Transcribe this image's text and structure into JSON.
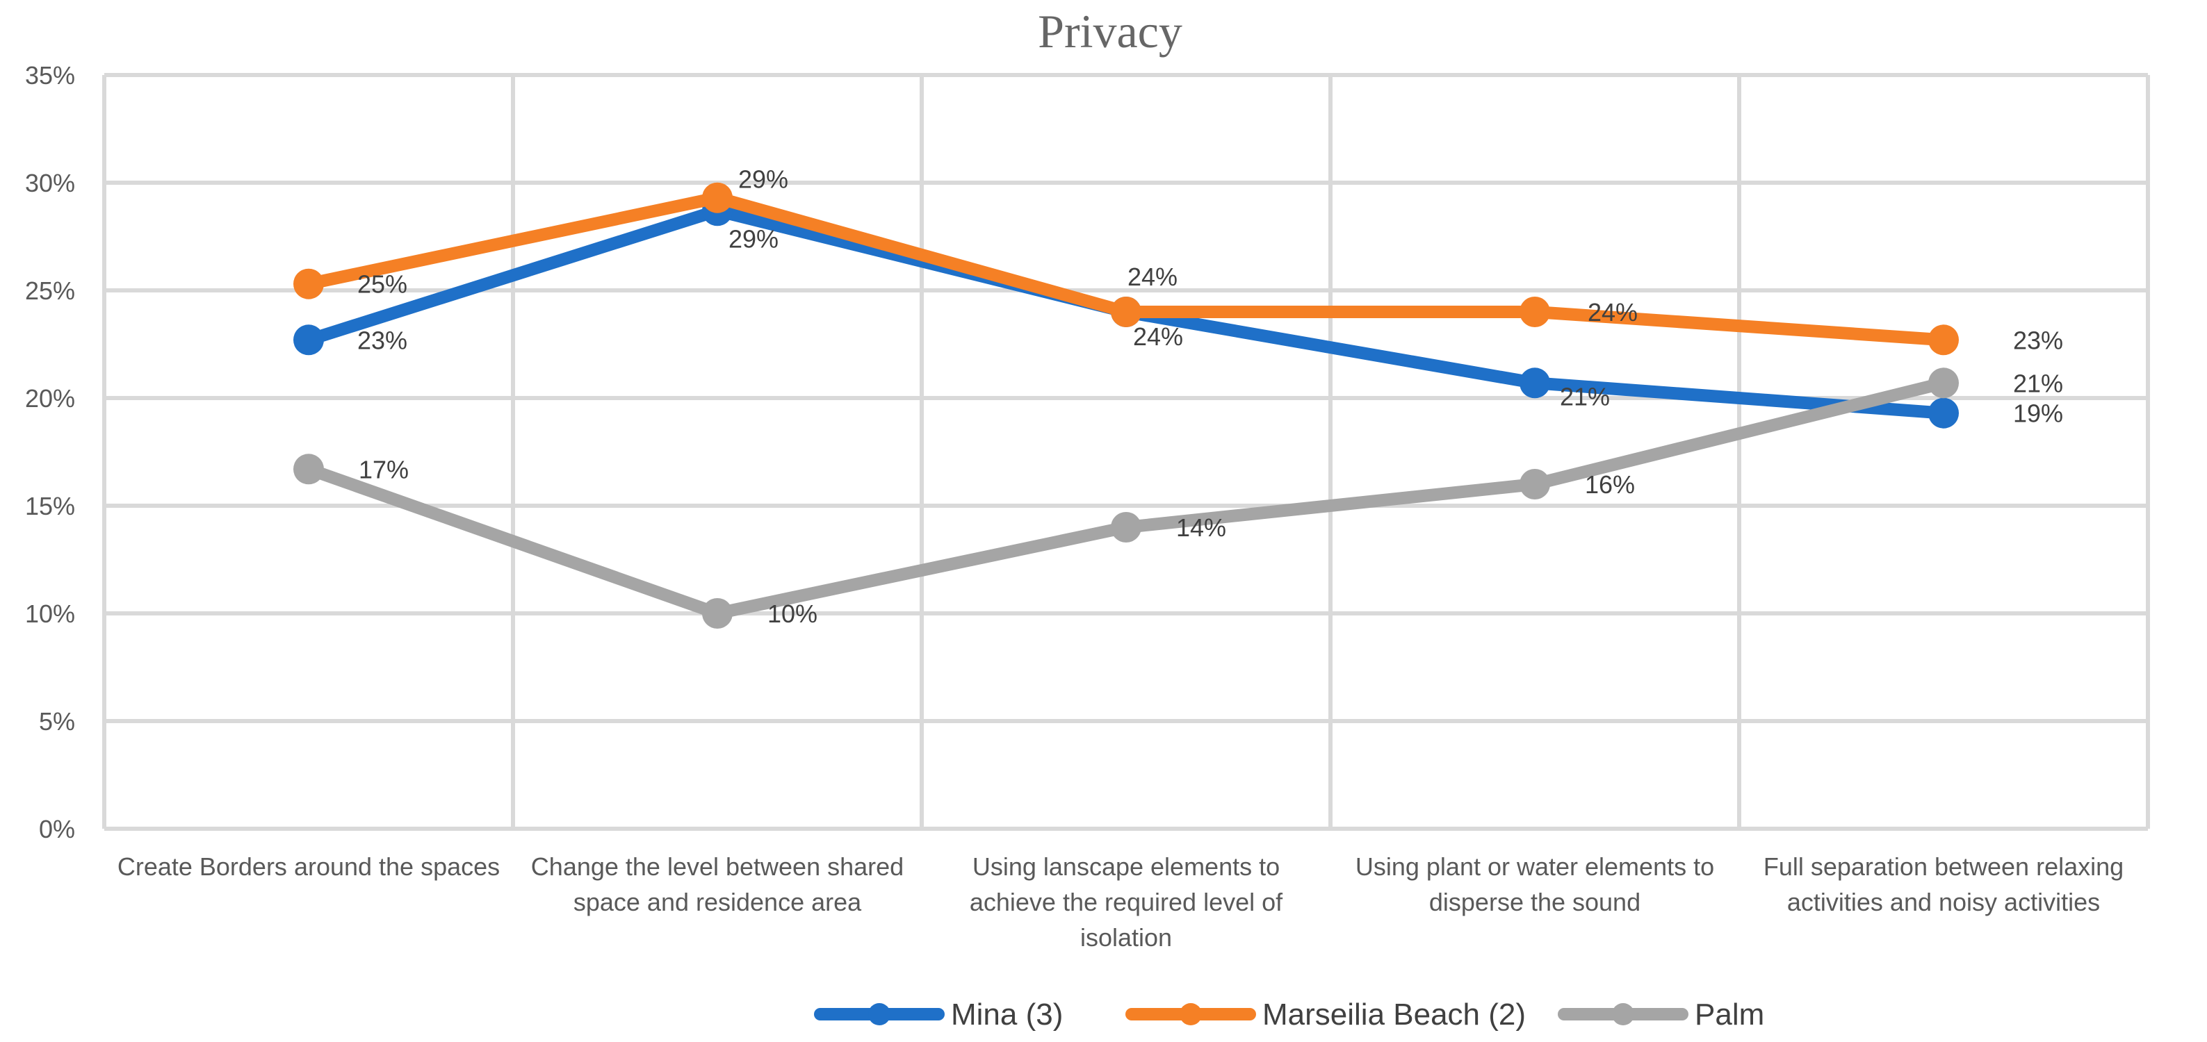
{
  "chart_data": {
    "type": "line",
    "title": "Privacy",
    "xlabel": "",
    "ylabel": "",
    "ylim": [
      0,
      0.35
    ],
    "yticks": [
      0,
      0.05,
      0.1,
      0.15,
      0.2,
      0.25,
      0.3,
      0.35
    ],
    "ytick_labels": [
      "0%",
      "5%",
      "10%",
      "15%",
      "20%",
      "25%",
      "30%",
      "35%"
    ],
    "categories": [
      [
        "Create Borders around the spaces"
      ],
      [
        "Change the level between shared",
        "space and residence area"
      ],
      [
        "Using lanscape elements to",
        "achieve the required level of",
        "isolation"
      ],
      [
        "Using plant or water elements to",
        "disperse the sound"
      ],
      [
        "Full separation between relaxing",
        "activities and noisy activities"
      ]
    ],
    "grid": true,
    "legend_position": "bottom",
    "series": [
      {
        "name": "Mina (3)",
        "color": "#1f70c8",
        "values": [
          0.227,
          0.287,
          0.24,
          0.207,
          0.193
        ],
        "labels": [
          "23%",
          "29%",
          "24%",
          "21%",
          "19%"
        ],
        "label_pos": [
          "below",
          "below",
          "below",
          "below",
          "below"
        ]
      },
      {
        "name": "Marseilia Beach (2)",
        "color": "#f58025",
        "values": [
          0.253,
          0.293,
          0.24,
          0.24,
          0.227
        ],
        "labels": [
          "25%",
          "29%",
          "24%",
          "24%",
          "23%"
        ],
        "label_pos": [
          "right",
          "above",
          "above",
          "right",
          "right"
        ]
      },
      {
        "name": "Palm",
        "color": "#a5a5a5",
        "values": [
          0.167,
          0.1,
          0.14,
          0.16,
          0.207
        ],
        "labels": [
          "17%",
          "10%",
          "14%",
          "16%",
          "21%"
        ],
        "label_pos": [
          "right",
          "right",
          "right",
          "right",
          "right"
        ]
      }
    ]
  }
}
